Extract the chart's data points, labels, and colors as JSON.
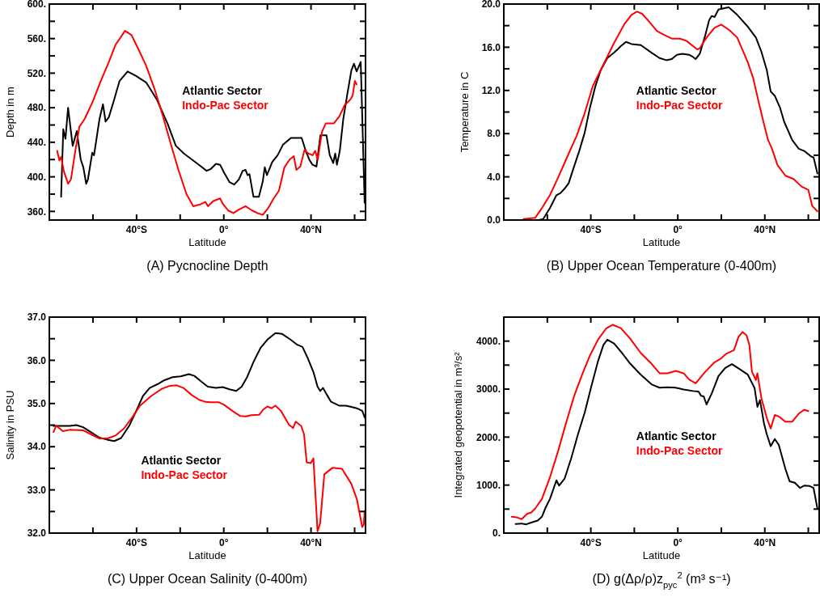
{
  "chart_data": [
    {
      "type": "line",
      "title": "(A) Pycnocline Depth",
      "xlabel": "Latitude",
      "ylabel": "Depth in m",
      "xlim": [
        -80,
        65
      ],
      "xticks": [
        {
          "value": -60,
          "label": null
        },
        {
          "value": -40,
          "label": "40°S"
        },
        {
          "value": -20,
          "label": null
        },
        {
          "value": 0,
          "label": "0°"
        },
        {
          "value": 20,
          "label": null
        },
        {
          "value": 40,
          "label": "40°N"
        },
        {
          "value": 60,
          "label": null
        }
      ],
      "ylim": [
        350,
        600
      ],
      "yticks": [
        {
          "value": 360,
          "label": "360."
        },
        {
          "value": 380,
          "label": null
        },
        {
          "value": 400,
          "label": "400."
        },
        {
          "value": 420,
          "label": null
        },
        {
          "value": 440,
          "label": "440."
        },
        {
          "value": 460,
          "label": null
        },
        {
          "value": 480,
          "label": "480."
        },
        {
          "value": 500,
          "label": null
        },
        {
          "value": 520,
          "label": "520."
        },
        {
          "value": 540,
          "label": null
        },
        {
          "value": 560,
          "label": "560."
        },
        {
          "value": 580,
          "label": null
        },
        {
          "value": 600,
          "label": "600."
        }
      ],
      "legend": "center",
      "grid": false,
      "series": [
        {
          "name": "Atlantic Sector",
          "color": "#000000",
          "x": [
            -74.6,
            -73.6,
            -72.6,
            -71.4,
            -69.3,
            -67.4,
            -65.6,
            -64.4,
            -63.1,
            -62.3,
            -60.3,
            -59.5,
            -57,
            -55.4,
            -54.2,
            -52.7,
            -50.2,
            -47.8,
            -44.1,
            -40.4,
            -35.5,
            -30.6,
            -25.7,
            -22,
            -18.3,
            -14.6,
            -10.9,
            -7.9,
            -6,
            -3.6,
            -1.7,
            0.1,
            2.6,
            4.8,
            6.9,
            8.7,
            10,
            10.9,
            11.8,
            13.6,
            16.1,
            17.9,
            18.8,
            19.8,
            22.2,
            24.7,
            27.1,
            30.8,
            35.7,
            37.6,
            39.4,
            40.7,
            42.5,
            44.3,
            47.1,
            48.6,
            50.2,
            51.1,
            51.9,
            53.2,
            54.8,
            56.6,
            58.5,
            59.7,
            60.9,
            62.8,
            64.6
          ],
          "values": [
            377,
            455,
            444,
            480,
            436,
            453,
            420,
            411,
            392,
            397,
            428,
            425,
            467,
            484,
            464,
            469,
            490,
            511,
            522,
            517,
            509,
            489,
            461,
            436,
            427,
            420,
            413,
            407,
            409,
            415,
            414,
            405,
            394,
            391,
            397,
            407,
            408,
            402,
            403,
            377,
            377,
            395,
            411,
            402,
            417,
            425,
            437,
            445,
            445,
            430,
            419,
            414,
            412,
            448,
            448,
            425,
            416,
            427,
            414,
            430,
            467,
            495,
            523,
            531,
            522,
            533,
            370
          ]
        },
        {
          "name": "Indo-Pac Sector",
          "color": "#ff0000",
          "x": [
            -76.4,
            -75.4,
            -74.6,
            -73.3,
            -71.4,
            -70.1,
            -68.1,
            -66.2,
            -63.8,
            -60.1,
            -56.4,
            -52.7,
            -49.6,
            -45.3,
            -42.3,
            -39.2,
            -35.5,
            -31.8,
            -28.1,
            -24.4,
            -20.8,
            -17.1,
            -14,
            -10.9,
            -8.5,
            -7.2,
            -4.8,
            -1.7,
            -0.5,
            2,
            4.4,
            6.9,
            10,
            13,
            15.5,
            17.9,
            20.4,
            22.9,
            25.3,
            27.8,
            30.2,
            32.1,
            33.3,
            35.1,
            37,
            38.8,
            40.7,
            41.9,
            43.1,
            45,
            46.8,
            50.5,
            53,
            55.4,
            57.9,
            59.1,
            60.1,
            60.9
          ],
          "values": [
            430,
            419,
            423,
            406,
            392,
            397,
            430,
            458,
            467,
            487,
            511,
            533,
            553,
            569,
            564,
            548,
            528,
            502,
            472,
            439,
            408,
            380,
            366,
            368,
            371,
            366,
            372,
            375,
            369,
            361,
            358,
            362,
            366,
            361,
            358,
            356,
            364,
            375,
            384,
            411,
            420,
            424,
            408,
            412,
            431,
            427,
            425,
            430,
            420,
            452,
            462,
            462,
            470,
            483,
            489,
            494,
            511,
            507
          ]
        }
      ]
    },
    {
      "type": "line",
      "title": "(B) Upper Ocean Temperature (0-400m)",
      "xlabel": "Latitude",
      "ylabel": "Temperature in C",
      "xlim": [
        -80,
        65
      ],
      "xticks": [
        {
          "value": -60,
          "label": null
        },
        {
          "value": -40,
          "label": "40°S"
        },
        {
          "value": -20,
          "label": null
        },
        {
          "value": 0,
          "label": "0°"
        },
        {
          "value": 20,
          "label": null
        },
        {
          "value": 40,
          "label": "40°N"
        },
        {
          "value": 60,
          "label": null
        }
      ],
      "ylim": [
        0,
        20
      ],
      "yticks": [
        {
          "value": 0,
          "label": "0.0"
        },
        {
          "value": 2,
          "label": null
        },
        {
          "value": 4,
          "label": "4.0"
        },
        {
          "value": 6,
          "label": null
        },
        {
          "value": 8,
          "label": "8.0"
        },
        {
          "value": 10,
          "label": null
        },
        {
          "value": 12,
          "label": "12.0"
        },
        {
          "value": 14,
          "label": null
        },
        {
          "value": 16,
          "label": "16.0"
        },
        {
          "value": 18,
          "label": null
        },
        {
          "value": 20,
          "label": "20.0"
        }
      ],
      "legend": "center",
      "grid": false,
      "series": [
        {
          "name": "Atlantic Sector",
          "color": "#000000",
          "x": [
            -63.8,
            -61.9,
            -58.8,
            -55.8,
            -53.9,
            -52.1,
            -50.2,
            -47.8,
            -45.3,
            -42.8,
            -40.4,
            -37.9,
            -35.4,
            -32.4,
            -29.3,
            -26.2,
            -23.8,
            -21.3,
            -17,
            -12.1,
            -8.4,
            -5.3,
            -2.8,
            -0.4,
            2.1,
            5.2,
            7,
            8.2,
            10.1,
            12.6,
            14.4,
            15.6,
            16.9,
            18.7,
            21.2,
            23.4,
            27.3,
            32.2,
            35.9,
            38.4,
            40.9,
            42.7,
            44.6,
            47,
            48.9,
            52.6,
            55.6,
            58.1,
            61.2,
            62.4,
            64.2
          ],
          "values": [
            0,
            0.1,
            1.1,
            2.3,
            2.5,
            2.9,
            3.4,
            4.9,
            6.4,
            8.1,
            10.4,
            12.4,
            13.9,
            15,
            15.5,
            16.1,
            16.5,
            16.3,
            16.2,
            15.5,
            15,
            14.8,
            14.9,
            15.3,
            15.4,
            15.3,
            15.1,
            14.9,
            15.4,
            17.1,
            18.5,
            18.9,
            18.8,
            19.5,
            19.6,
            19.7,
            19,
            17.9,
            16.9,
            15.6,
            13.9,
            11.9,
            11.5,
            10.4,
            9.1,
            7.4,
            6.6,
            6.4,
            5.9,
            5.8,
            4.3
          ]
        },
        {
          "name": "Indo-Pac Sector",
          "color": "#ff0000",
          "x": [
            -70.9,
            -65.6,
            -62.5,
            -58.8,
            -55.1,
            -51.4,
            -46.5,
            -42.8,
            -39.1,
            -34.2,
            -29.3,
            -24.4,
            -21.3,
            -18.8,
            -16.4,
            -13.3,
            -9.6,
            -5.9,
            -2.8,
            0.9,
            3.9,
            7,
            8.9,
            10.1,
            13.2,
            16.9,
            19.9,
            23.6,
            27.3,
            32.2,
            34.7,
            37.2,
            39.6,
            41.5,
            43.3,
            45.8,
            49.5,
            53.2,
            56.9,
            60,
            61.8,
            64.2
          ],
          "values": [
            0.1,
            0.2,
            1.1,
            2.3,
            3.9,
            5.6,
            7.8,
            9.9,
            12.4,
            14.4,
            16.4,
            18.2,
            19,
            19.3,
            19.1,
            18.4,
            17.5,
            17.1,
            16.8,
            16.8,
            16.6,
            16.1,
            15.8,
            15.9,
            16.9,
            17.8,
            18.1,
            17.6,
            16.9,
            14.6,
            13.1,
            10.9,
            8.9,
            7.4,
            6.6,
            5.1,
            4.1,
            3.8,
            3.1,
            2.8,
            1.3,
            0.8
          ]
        }
      ]
    },
    {
      "type": "line",
      "title": "(C) Upper Ocean Salinity (0-400m)",
      "xlabel": "Latitude",
      "ylabel": "Salinity in PSU",
      "xlim": [
        -80,
        65
      ],
      "xticks": [
        {
          "value": -60,
          "label": null
        },
        {
          "value": -40,
          "label": "40°S"
        },
        {
          "value": -20,
          "label": null
        },
        {
          "value": 0,
          "label": "0°"
        },
        {
          "value": 20,
          "label": null
        },
        {
          "value": 40,
          "label": "40°N"
        },
        {
          "value": 60,
          "label": null
        }
      ],
      "ylim": [
        32,
        37
      ],
      "yticks": [
        {
          "value": 32,
          "label": "32.0"
        },
        {
          "value": 32.5,
          "label": null
        },
        {
          "value": 33,
          "label": "33.0"
        },
        {
          "value": 33.5,
          "label": null
        },
        {
          "value": 34,
          "label": "34.0"
        },
        {
          "value": 34.5,
          "label": null
        },
        {
          "value": 35,
          "label": "35.0"
        },
        {
          "value": 35.5,
          "label": null
        },
        {
          "value": 36,
          "label": "36.0"
        },
        {
          "value": 36.5,
          "label": null
        },
        {
          "value": 37,
          "label": "37.0"
        }
      ],
      "legend": "bottom left",
      "grid": false,
      "series": [
        {
          "name": "Atlantic Sector",
          "color": "#000000",
          "x": [
            -78.1,
            -70.7,
            -67.6,
            -64.5,
            -60.7,
            -57,
            -53.3,
            -50.2,
            -47.1,
            -43.4,
            -39.6,
            -37.1,
            -34,
            -30.3,
            -27.2,
            -23.5,
            -19.8,
            -16,
            -13.5,
            -10.4,
            -7.3,
            -3.6,
            -0.5,
            2.6,
            5.7,
            8.2,
            10.7,
            13.8,
            16.9,
            20,
            23.7,
            26.8,
            30.6,
            33.7,
            36.1,
            38.6,
            41.1,
            43,
            44.2,
            45.5,
            47.3,
            49.2,
            52.9,
            56,
            58.5,
            61,
            63.5,
            64.7
          ],
          "values": [
            34.48,
            34.48,
            34.5,
            34.45,
            34.33,
            34.21,
            34.16,
            34.13,
            34.2,
            34.48,
            34.89,
            35.17,
            35.36,
            35.45,
            35.54,
            35.61,
            35.63,
            35.68,
            35.64,
            35.51,
            35.39,
            35.36,
            35.38,
            35.33,
            35.29,
            35.39,
            35.61,
            35.98,
            36.29,
            36.48,
            36.63,
            36.61,
            36.48,
            36.36,
            36.31,
            36.04,
            35.73,
            35.39,
            35.29,
            35.36,
            35.2,
            35.04,
            34.95,
            34.95,
            34.92,
            34.89,
            34.83,
            34.67
          ]
        },
        {
          "name": "Indo-Pac Sector",
          "color": "#ff0000",
          "x": [
            -78.1,
            -76.9,
            -75.9,
            -73.8,
            -70.7,
            -64.5,
            -60.7,
            -57,
            -53.3,
            -49.6,
            -45.8,
            -42.1,
            -38.4,
            -33.4,
            -28.4,
            -24.7,
            -21.6,
            -18.5,
            -14.8,
            -11.1,
            -8.6,
            -6.1,
            -2.4,
            0.1,
            3.9,
            7.6,
            10.1,
            12.5,
            16.3,
            18.1,
            20,
            21.9,
            23.7,
            26.2,
            29.9,
            31.8,
            33,
            35.5,
            36.8,
            38,
            39.9,
            41.1,
            43,
            44.2,
            46.1,
            49.8,
            54.2,
            58.5,
            61,
            63.5,
            64.2,
            64.6
          ],
          "values": [
            34.34,
            34.48,
            34.45,
            34.36,
            34.39,
            34.38,
            34.28,
            34.19,
            34.19,
            34.26,
            34.42,
            34.67,
            34.95,
            35.17,
            35.34,
            35.41,
            35.42,
            35.36,
            35.2,
            35.08,
            35.04,
            35.03,
            35.03,
            34.97,
            34.83,
            34.71,
            34.7,
            34.73,
            34.74,
            34.86,
            34.93,
            34.89,
            34.95,
            34.83,
            34.51,
            34.43,
            34.58,
            34.48,
            34.29,
            33.64,
            33.62,
            33.73,
            32.04,
            32.23,
            33.36,
            33.51,
            33.49,
            33.14,
            32.79,
            32.14,
            32.2,
            32.51
          ]
        }
      ]
    },
    {
      "type": "line",
      "title": "(D) g(Δρ/ρ)z$_{pyc}$$^{2}$ (m³ s⁻¹)",
      "xlabel": "Latitude",
      "ylabel": "Integrated geopotential in m³/s²",
      "xlim": [
        -80,
        65
      ],
      "xticks": [
        {
          "value": -60,
          "label": null
        },
        {
          "value": -40,
          "label": "40°S"
        },
        {
          "value": -20,
          "label": null
        },
        {
          "value": 0,
          "label": "0°"
        },
        {
          "value": 20,
          "label": null
        },
        {
          "value": 40,
          "label": "40°N"
        },
        {
          "value": 60,
          "label": null
        }
      ],
      "ylim": [
        0,
        4500
      ],
      "yticks": [
        {
          "value": 0,
          "label": "0."
        },
        {
          "value": 500,
          "label": null
        },
        {
          "value": 1000,
          "label": "1000."
        },
        {
          "value": 1500,
          "label": null
        },
        {
          "value": 2000,
          "label": "2000."
        },
        {
          "value": 2500,
          "label": null
        },
        {
          "value": 3000,
          "label": "3000."
        },
        {
          "value": 3500,
          "label": null
        },
        {
          "value": 4000,
          "label": "4000."
        }
      ],
      "legend": "bottom",
      "grid": false,
      "series": [
        {
          "name": "Atlantic Sector",
          "color": "#000000",
          "x": [
            -74.6,
            -71.8,
            -69.9,
            -67.4,
            -64.4,
            -62.5,
            -60.7,
            -58.8,
            -55.8,
            -54.6,
            -52.1,
            -49,
            -45.9,
            -42.8,
            -39.8,
            -36.7,
            -34.2,
            -32.4,
            -29.3,
            -25.6,
            -21.9,
            -17,
            -12.1,
            -8.4,
            -4.7,
            -1,
            2.7,
            7,
            9.5,
            10.7,
            11.9,
            13.2,
            15.6,
            18.7,
            21.8,
            24.9,
            28.6,
            32.2,
            35.3,
            36.6,
            37.8,
            39.6,
            40.9,
            42.7,
            44.6,
            46.4,
            49.5,
            51.4,
            53.8,
            56.2,
            58.1,
            60.6,
            62.4,
            64.2
          ],
          "values": [
            190,
            200,
            180,
            220,
            260,
            340,
            540,
            710,
            1100,
            990,
            1130,
            1560,
            2060,
            2510,
            3050,
            3580,
            3920,
            4030,
            3950,
            3750,
            3530,
            3300,
            3100,
            3030,
            3040,
            3030,
            2990,
            2960,
            2950,
            2860,
            2850,
            2680,
            2910,
            3270,
            3440,
            3520,
            3410,
            3300,
            3020,
            2630,
            2770,
            2290,
            2060,
            1810,
            1960,
            1840,
            1330,
            1080,
            1050,
            940,
            990,
            980,
            940,
            510
          ]
        },
        {
          "name": "Indo-Pac Sector",
          "color": "#ff0000",
          "x": [
            -76.3,
            -74.2,
            -71.8,
            -69.3,
            -67.4,
            -65.6,
            -62.5,
            -58.8,
            -55.1,
            -51.4,
            -47.7,
            -44,
            -40.4,
            -36.7,
            -33,
            -29.9,
            -26.2,
            -21.9,
            -17,
            -12.1,
            -8.4,
            -4.7,
            -1,
            2.7,
            5.2,
            8.2,
            12.6,
            16.9,
            19.9,
            22.4,
            25.8,
            27.9,
            29.8,
            31.6,
            32.9,
            34.1,
            35.9,
            36.6,
            38.4,
            40.9,
            42.7,
            44.6,
            46.4,
            49.5,
            52.6,
            55.6,
            58.1,
            60
          ],
          "values": [
            340,
            330,
            290,
            400,
            430,
            510,
            710,
            1160,
            1700,
            2290,
            2850,
            3300,
            3700,
            4030,
            4260,
            4340,
            4270,
            4050,
            3750,
            3530,
            3330,
            3330,
            3380,
            3330,
            3200,
            3120,
            3360,
            3560,
            3640,
            3740,
            3810,
            4090,
            4190,
            4120,
            3920,
            3360,
            3190,
            3330,
            2820,
            2400,
            2180,
            2460,
            2430,
            2320,
            2320,
            2490,
            2570,
            2540
          ]
        }
      ]
    }
  ]
}
